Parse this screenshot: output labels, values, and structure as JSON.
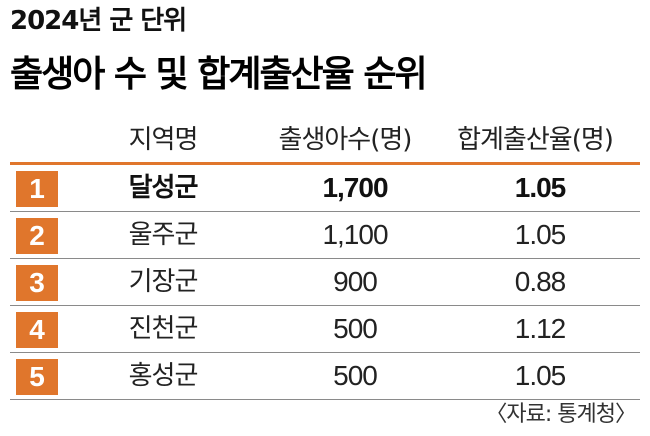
{
  "subtitle": "2024년 군 단위",
  "title": "출생아 수 및 합계출산율 순위",
  "table": {
    "headers": {
      "region": "지역명",
      "births": "출생아수(명)",
      "fertility_rate": "합계출산율(명)"
    },
    "rows": [
      {
        "rank": "1",
        "region": "달성군",
        "births": "1,700",
        "fertility_rate": "1.05"
      },
      {
        "rank": "2",
        "region": "울주군",
        "births": "1,100",
        "fertility_rate": "1.05"
      },
      {
        "rank": "3",
        "region": "기장군",
        "births": "900",
        "fertility_rate": "0.88"
      },
      {
        "rank": "4",
        "region": "진천군",
        "births": "500",
        "fertility_rate": "1.12"
      },
      {
        "rank": "5",
        "region": "홍성군",
        "births": "500",
        "fertility_rate": "1.05"
      }
    ]
  },
  "source": "〈자료: 통계청〉",
  "colors": {
    "accent": "#e0762c",
    "rule": "#8a8a8a",
    "text": "#222222"
  }
}
